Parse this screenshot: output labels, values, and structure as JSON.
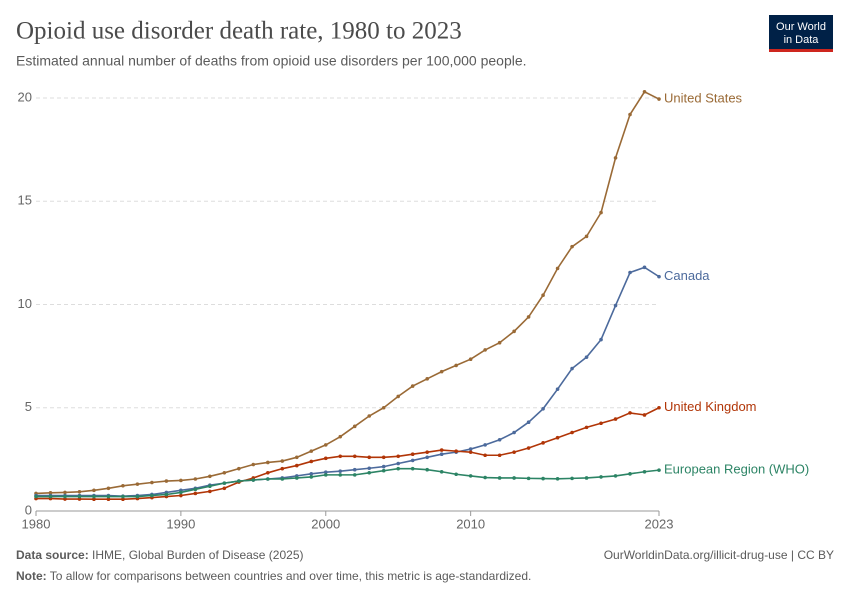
{
  "logo": [
    "Our World",
    "in Data"
  ],
  "chart_data": {
    "type": "line",
    "title": "Opioid use disorder death rate, 1980 to 2023",
    "subtitle": "Estimated annual number of deaths from opioid use disorders per 100,000 people.",
    "source_label": "Data source:",
    "source": "IHME, Global Burden of Disease (2025)",
    "url": "OurWorldinData.org/illicit-drug-use | CC BY",
    "note_label": "Note:",
    "note": "To allow for comparisons between countries and over time, this metric is age-standardized.",
    "x": [
      1980,
      1981,
      1982,
      1983,
      1984,
      1985,
      1986,
      1987,
      1988,
      1989,
      1990,
      1991,
      1992,
      1993,
      1994,
      1995,
      1996,
      1997,
      1998,
      1999,
      2000,
      2001,
      2002,
      2003,
      2004,
      2005,
      2006,
      2007,
      2008,
      2009,
      2010,
      2011,
      2012,
      2013,
      2014,
      2015,
      2016,
      2017,
      2018,
      2019,
      2020,
      2021,
      2022,
      2023
    ],
    "xlim": [
      1980,
      2023
    ],
    "xticks": [
      1980,
      1990,
      2000,
      2010,
      2023
    ],
    "ylim": [
      0,
      20
    ],
    "yticks": [
      0,
      5,
      10,
      15,
      20
    ],
    "grid": true,
    "series": [
      {
        "name": "United States",
        "color": "#9a6a36",
        "values": [
          0.85,
          0.88,
          0.9,
          0.93,
          1.0,
          1.1,
          1.22,
          1.3,
          1.38,
          1.45,
          1.48,
          1.55,
          1.68,
          1.85,
          2.05,
          2.25,
          2.35,
          2.42,
          2.6,
          2.9,
          3.2,
          3.6,
          4.1,
          4.6,
          5.0,
          5.55,
          6.05,
          6.4,
          6.75,
          7.05,
          7.35,
          7.8,
          8.15,
          8.7,
          9.4,
          10.45,
          11.75,
          12.8,
          13.3,
          14.45,
          17.1,
          19.2,
          20.3,
          19.95
        ]
      },
      {
        "name": "Canada",
        "color": "#4c6a9c",
        "values": [
          0.75,
          0.75,
          0.75,
          0.75,
          0.75,
          0.75,
          0.72,
          0.75,
          0.8,
          0.9,
          1.0,
          1.1,
          1.25,
          1.35,
          1.45,
          1.5,
          1.55,
          1.6,
          1.7,
          1.8,
          1.88,
          1.93,
          2.0,
          2.07,
          2.15,
          2.3,
          2.45,
          2.6,
          2.75,
          2.85,
          3.0,
          3.2,
          3.45,
          3.8,
          4.3,
          4.95,
          5.9,
          6.9,
          7.45,
          8.3,
          9.95,
          11.55,
          11.8,
          11.35
        ]
      },
      {
        "name": "United Kingdom",
        "color": "#b13507",
        "values": [
          0.6,
          0.6,
          0.58,
          0.58,
          0.57,
          0.57,
          0.57,
          0.6,
          0.65,
          0.7,
          0.75,
          0.85,
          0.95,
          1.1,
          1.4,
          1.6,
          1.85,
          2.05,
          2.2,
          2.4,
          2.55,
          2.65,
          2.65,
          2.6,
          2.6,
          2.65,
          2.75,
          2.85,
          2.95,
          2.9,
          2.85,
          2.7,
          2.7,
          2.85,
          3.05,
          3.3,
          3.55,
          3.8,
          4.05,
          4.25,
          4.45,
          4.75,
          4.65,
          5.0
        ]
      },
      {
        "name": "European Region (WHO)",
        "color": "#2c8465",
        "values": [
          0.7,
          0.7,
          0.7,
          0.7,
          0.7,
          0.7,
          0.7,
          0.7,
          0.75,
          0.8,
          0.9,
          1.05,
          1.2,
          1.35,
          1.45,
          1.5,
          1.55,
          1.55,
          1.6,
          1.65,
          1.75,
          1.75,
          1.75,
          1.85,
          1.95,
          2.05,
          2.05,
          2.0,
          1.9,
          1.78,
          1.7,
          1.62,
          1.6,
          1.6,
          1.58,
          1.57,
          1.56,
          1.58,
          1.6,
          1.65,
          1.7,
          1.8,
          1.9,
          1.98
        ]
      }
    ]
  }
}
